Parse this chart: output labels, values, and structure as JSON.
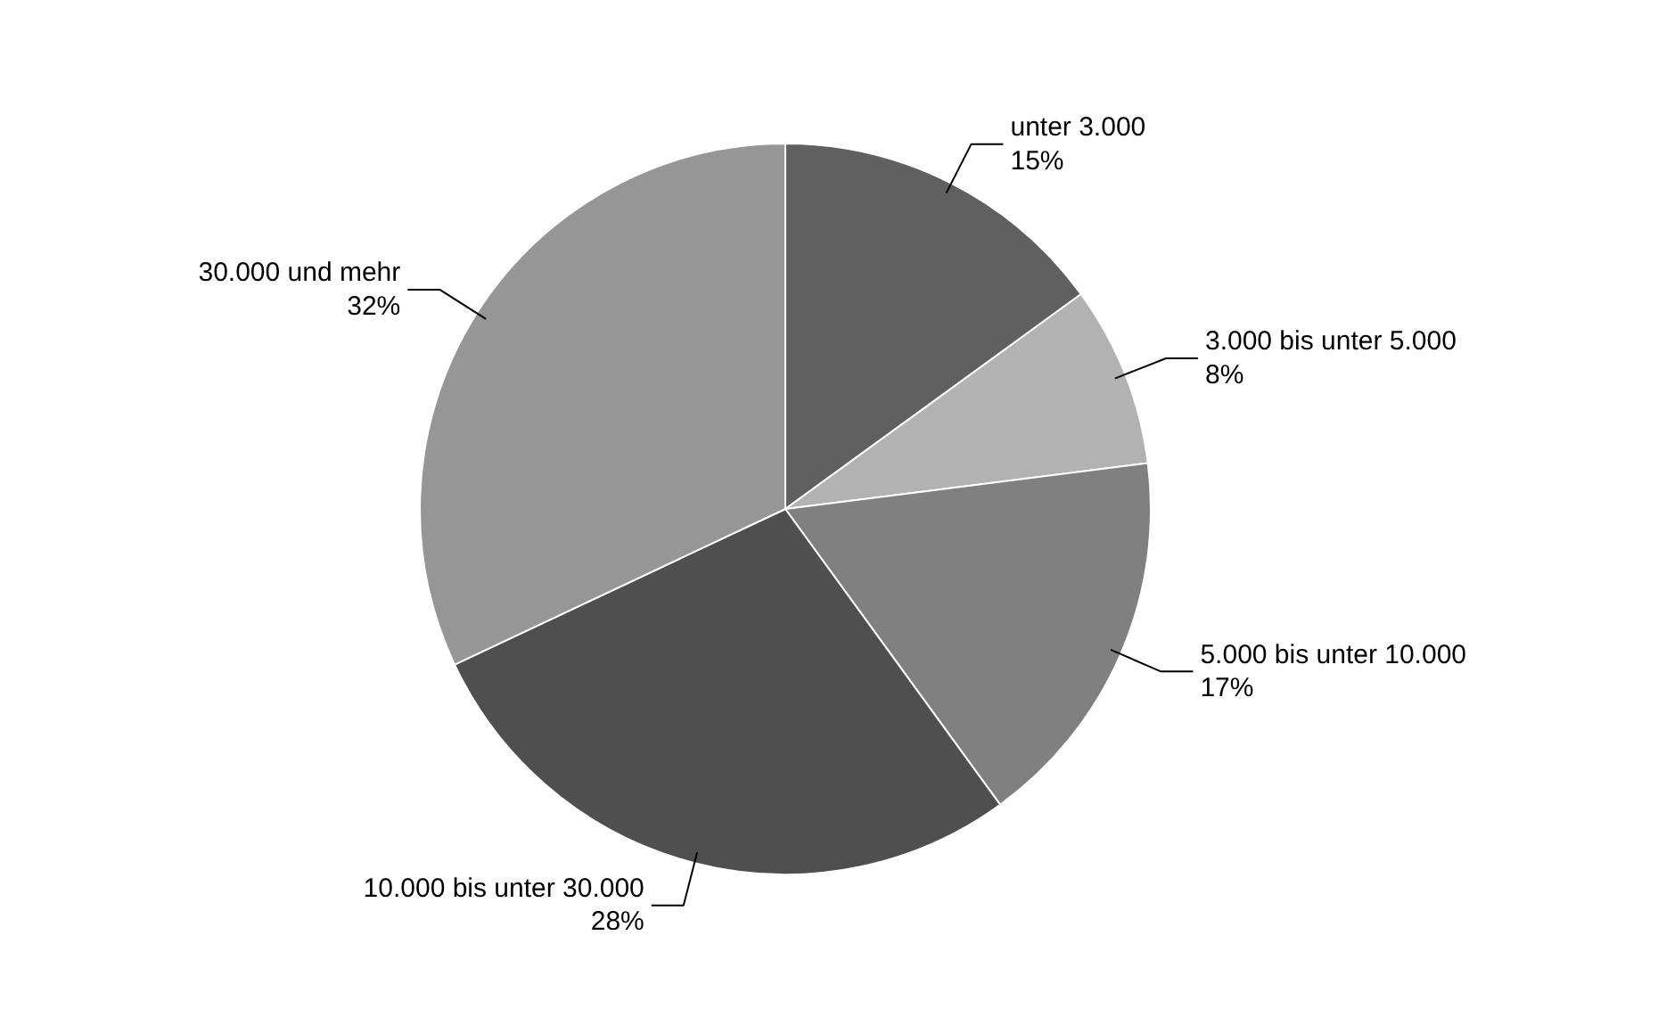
{
  "chart_data": {
    "type": "pie",
    "categories": [
      "unter  3.000",
      "3.000 bis unter 5.000",
      "5.000 bis unter 10.000",
      "10.000 bis unter 30.000",
      "30.000 und mehr"
    ],
    "values": [
      15,
      8,
      17,
      28,
      32
    ],
    "colors": [
      "#606060",
      "#b2b2b2",
      "#808080",
      "#4f4f4f",
      "#969696"
    ],
    "value_labels": [
      "15%",
      "8%",
      "17%",
      "28%",
      "32%"
    ],
    "legend": false
  }
}
